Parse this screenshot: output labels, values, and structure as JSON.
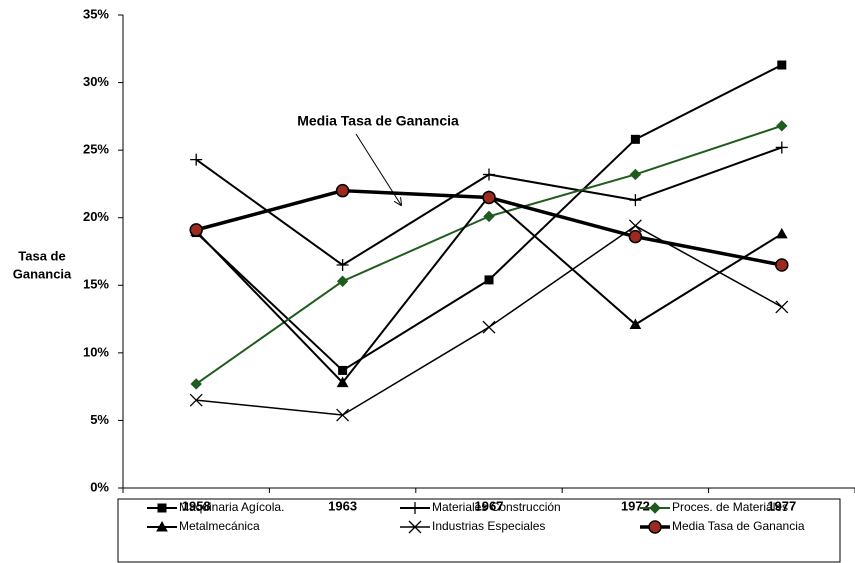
{
  "chart_data": {
    "type": "line",
    "y_label_lines": [
      "Tasa de",
      "Ganancia"
    ],
    "annotation": "Media Tasa de Ganancia",
    "categories": [
      "1958",
      "1963",
      "1967",
      "1972",
      "1977"
    ],
    "ylim": [
      0,
      35
    ],
    "yticks": [
      {
        "value": 0,
        "label": "0%"
      },
      {
        "value": 5,
        "label": "5%"
      },
      {
        "value": 10,
        "label": "10%"
      },
      {
        "value": 15,
        "label": "15%"
      },
      {
        "value": 20,
        "label": "20%"
      },
      {
        "value": 25,
        "label": "25%"
      },
      {
        "value": 30,
        "label": "30%"
      },
      {
        "value": 35,
        "label": "35%"
      }
    ],
    "grid": false,
    "legend": "bottom",
    "series": [
      {
        "name": "Maquinaria Agícola.",
        "color": "#000000",
        "marker": "square",
        "width": 2,
        "values": [
          18.9,
          8.7,
          15.4,
          25.8,
          31.3
        ]
      },
      {
        "name": "Materiales Construcción",
        "color": "#000000",
        "marker": "plus",
        "width": 2,
        "values": [
          24.3,
          16.5,
          23.2,
          21.3,
          25.2
        ]
      },
      {
        "name": "Proces. de Materiales",
        "color": "#1f5c1f",
        "marker": "diamond",
        "width": 2,
        "values": [
          7.7,
          15.3,
          20.1,
          23.2,
          26.8
        ]
      },
      {
        "name": "Metalmecánica",
        "color": "#000000",
        "marker": "triangle",
        "width": 2,
        "values": [
          19.0,
          7.8,
          21.6,
          12.1,
          18.8
        ]
      },
      {
        "name": "Industrias Especiales",
        "color": "#000000",
        "marker": "x",
        "width": 1.5,
        "values": [
          6.5,
          5.4,
          11.9,
          19.4,
          13.4
        ]
      },
      {
        "name": "Media Tasa de Ganancia",
        "color": "#000000",
        "marker": "circle",
        "marker_fill": "#9c2a1e",
        "width": 3.5,
        "values": [
          19.1,
          22.0,
          21.5,
          18.6,
          16.5
        ]
      }
    ]
  }
}
